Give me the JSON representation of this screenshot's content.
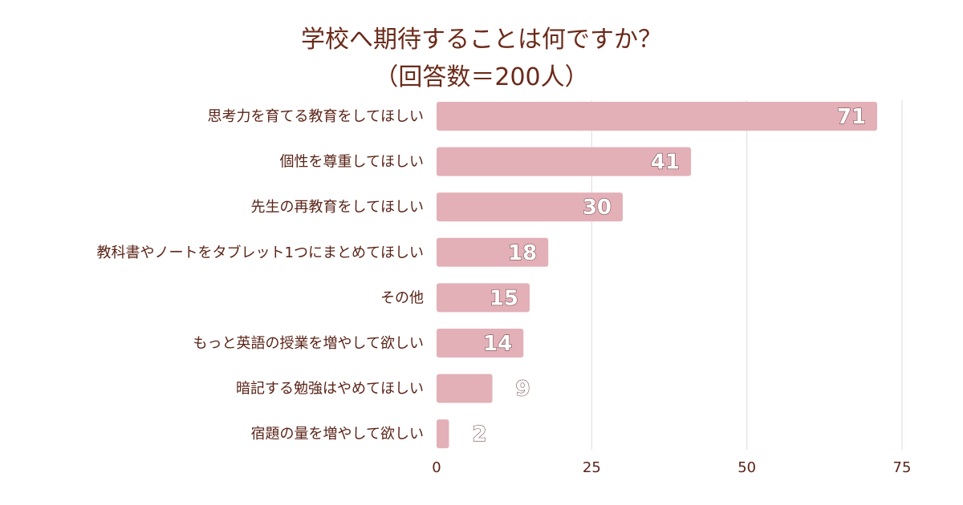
{
  "chart_data": {
    "type": "bar",
    "orientation": "horizontal",
    "title": "学校へ期待することは何ですか？",
    "subtitle": "（回答数＝200人）",
    "categories": [
      "思考力を育てる教育をしてほしい",
      "個性を尊重してほしい",
      "先生の再教育をしてほしい",
      "教科書やノートをタブレット1つにまとめてほしい",
      "その他",
      "もっと英語の授業を増やして欲しい",
      "暗記する勉強はやめてほしい",
      "宿題の量を増やして欲しい"
    ],
    "values": [
      71,
      41,
      30,
      18,
      15,
      14,
      9,
      2
    ],
    "xlim": [
      0,
      75
    ],
    "xticks": [
      0,
      25,
      50,
      75
    ],
    "grid": "vertical",
    "bar_color": "#e3b0b7",
    "grid_color": "#e3d7d9",
    "text_color": "#5a2418",
    "title_color": "#6b2a1a"
  }
}
